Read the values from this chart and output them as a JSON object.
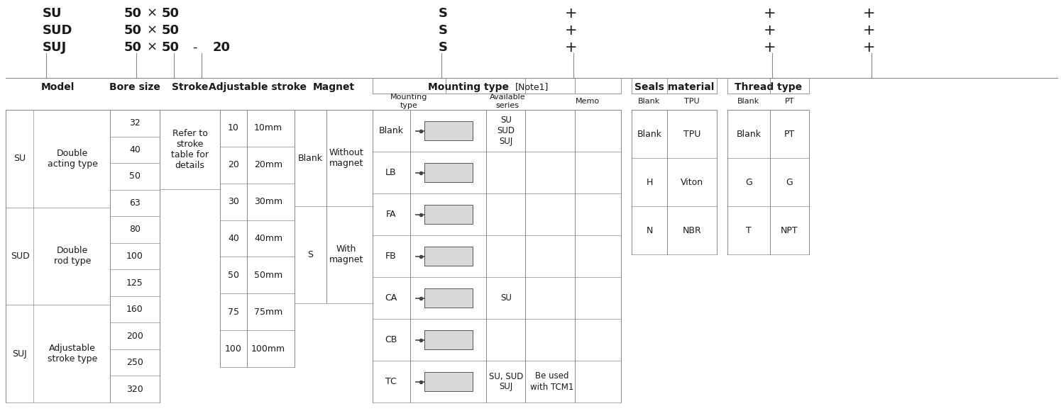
{
  "bg_color": "#ffffff",
  "text_color": "#1a1a1a",
  "line_color": "#888888",
  "bore_sizes": [
    "32",
    "40",
    "50",
    "63",
    "80",
    "100",
    "125",
    "160",
    "200",
    "250",
    "320"
  ],
  "adj_stroke_rows": [
    [
      "10",
      "10mm"
    ],
    [
      "20",
      "20mm"
    ],
    [
      "30",
      "30mm"
    ],
    [
      "40",
      "40mm"
    ],
    [
      "50",
      "50mm"
    ],
    [
      "75",
      "75mm"
    ],
    [
      "100",
      "100mm"
    ]
  ],
  "magnet_rows": [
    [
      "Blank",
      "Without\nmagnet"
    ],
    [
      "S",
      "With\nmagnet"
    ]
  ],
  "mounting_rows": [
    {
      "code": "Blank",
      "avail": "SU\nSUD\nSUJ",
      "memo": "",
      "avail_span": 3
    },
    {
      "code": "LB",
      "avail": "",
      "memo": "",
      "avail_span": 0
    },
    {
      "code": "FA",
      "avail": "",
      "memo": "",
      "avail_span": 0
    },
    {
      "code": "FB",
      "avail": "",
      "memo": "",
      "avail_span": 0
    },
    {
      "code": "CA",
      "avail": "SU",
      "memo": "",
      "avail_span": 1
    },
    {
      "code": "CB",
      "avail": "",
      "memo": "",
      "avail_span": 0
    },
    {
      "code": "TC",
      "avail": "SU, SUD\nSUJ",
      "memo": "Be used\nwith TCM1",
      "avail_span": 1
    }
  ],
  "seals_rows": [
    [
      "Blank",
      "TPU"
    ],
    [
      "H",
      "Viton"
    ],
    [
      "N",
      "NBR"
    ]
  ],
  "thread_rows": [
    [
      "Blank",
      "PT"
    ],
    [
      "G",
      "G"
    ],
    [
      "T",
      "NPT"
    ]
  ],
  "stroke_note": "Refer to\nstroke\ntable for\ndetails",
  "model_entries": [
    {
      "code": "SU",
      "desc": "Double\nacting type",
      "nrows": 2
    },
    {
      "code": "SUD",
      "desc": "Double\nrod type",
      "nrows": 2
    },
    {
      "code": "SUJ",
      "desc": "Adjustable\nstroke type",
      "nrows": 2
    }
  ]
}
